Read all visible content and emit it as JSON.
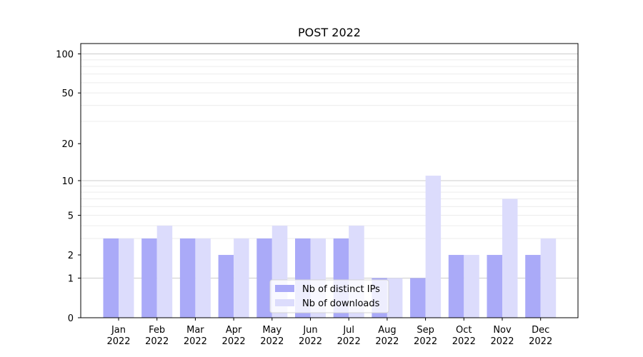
{
  "chart_data": {
    "type": "bar",
    "title": "POST 2022",
    "xlabel": "",
    "ylabel": "",
    "yscale": "log(1+y)",
    "ylim": [
      0,
      120
    ],
    "yticks": [
      0,
      1,
      2,
      5,
      10,
      20,
      50,
      100
    ],
    "grid": true,
    "legend_position": "bottom-center",
    "categories": [
      "Jan\n2022",
      "Feb\n2022",
      "Mar\n2022",
      "Apr\n2022",
      "May\n2022",
      "Jun\n2022",
      "Jul\n2022",
      "Aug\n2022",
      "Sep\n2022",
      "Oct\n2022",
      "Nov\n2022",
      "Dec\n2022"
    ],
    "series": [
      {
        "name": "Nb of distinct IPs",
        "color": "#aaaaf8",
        "values": [
          3,
          3,
          3,
          2,
          3,
          3,
          3,
          1,
          1,
          2,
          2,
          2
        ]
      },
      {
        "name": "Nb of downloads",
        "color": "#dcdcfc",
        "values": [
          3,
          4,
          3,
          3,
          4,
          3,
          4,
          1,
          11,
          2,
          7,
          3
        ]
      }
    ]
  }
}
